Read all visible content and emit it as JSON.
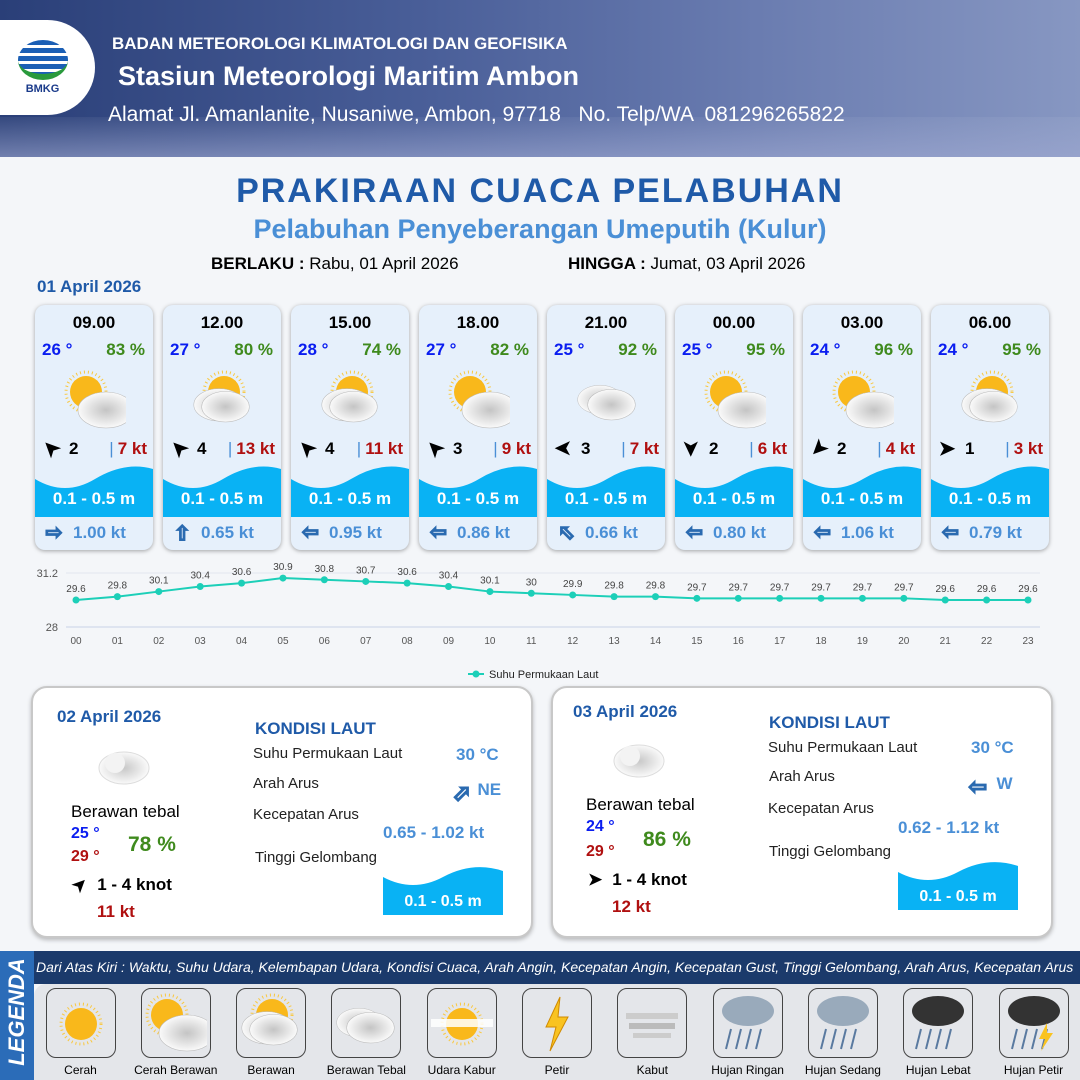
{
  "header": {
    "agency": "BADAN METEOROLOGI KLIMATOLOGI DAN GEOFISIKA",
    "station": "Stasiun Meteorologi Maritim Ambon",
    "address": "Alamat Jl. Amanlanite, Nusaniwe, Ambon, 97718   No. Telp/WA  081296265822",
    "logo_text": "BMKG"
  },
  "title": "PRAKIRAAN CUACA PELABUHAN",
  "subtitle": "Pelabuhan Penyeberangan Umeputih (Kulur)",
  "validity": {
    "from_label": "BERLAKU :",
    "from": "Rabu, 01 April 2026",
    "to_label": "HINGGA :",
    "to": "Jumat, 03 April 2026"
  },
  "day1": {
    "date": "01 April 2026",
    "cards": [
      {
        "time": "09.00",
        "temp": "26 °",
        "rh": "83 %",
        "weather": "cerah-berawan",
        "wind_dir": "NW",
        "wind": "2",
        "gust": "7 kt",
        "wave": "0.1 - 0.5 m",
        "current_dir": "E",
        "current": "1.00 kt"
      },
      {
        "time": "12.00",
        "temp": "27 °",
        "rh": "80 %",
        "weather": "berawan",
        "wind_dir": "NW",
        "wind": "4",
        "gust": "13 kt",
        "wave": "0.1 - 0.5 m",
        "current_dir": "N",
        "current": "0.65 kt"
      },
      {
        "time": "15.00",
        "temp": "28 °",
        "rh": "74 %",
        "weather": "berawan",
        "wind_dir": "NW",
        "wind": "4",
        "gust": "11 kt",
        "wave": "0.1 - 0.5 m",
        "current_dir": "W",
        "current": "0.95 kt"
      },
      {
        "time": "18.00",
        "temp": "27 °",
        "rh": "82 %",
        "weather": "cerah-berawan",
        "wind_dir": "NW",
        "wind": "3",
        "gust": "9 kt",
        "wave": "0.1 - 0.5 m",
        "current_dir": "W",
        "current": "0.86 kt"
      },
      {
        "time": "21.00",
        "temp": "25 °",
        "rh": "92 %",
        "weather": "berawan-tebal",
        "wind_dir": "W",
        "wind": "3",
        "gust": "7 kt",
        "wave": "0.1 - 0.5 m",
        "current_dir": "NW",
        "current": "0.66 kt"
      },
      {
        "time": "00.00",
        "temp": "25 °",
        "rh": "95 %",
        "weather": "cerah-berawan",
        "wind_dir": "S",
        "wind": "2",
        "gust": "6 kt",
        "wave": "0.1 - 0.5 m",
        "current_dir": "W",
        "current": "0.80 kt"
      },
      {
        "time": "03.00",
        "temp": "24 °",
        "rh": "96 %",
        "weather": "cerah-berawan",
        "wind_dir": "SW",
        "wind": "2",
        "gust": "4 kt",
        "wave": "0.1 - 0.5 m",
        "current_dir": "W",
        "current": "1.06 kt"
      },
      {
        "time": "06.00",
        "temp": "24 °",
        "rh": "95 %",
        "weather": "berawan",
        "wind_dir": "E",
        "wind": "1",
        "gust": "3 kt",
        "wave": "0.1 - 0.5 m",
        "current_dir": "W",
        "current": "0.79 kt"
      }
    ]
  },
  "chart_data": {
    "type": "line",
    "categories": [
      "00",
      "01",
      "02",
      "03",
      "04",
      "05",
      "06",
      "07",
      "08",
      "09",
      "10",
      "11",
      "12",
      "13",
      "14",
      "15",
      "16",
      "17",
      "18",
      "19",
      "20",
      "21",
      "22",
      "23"
    ],
    "series": [
      {
        "name": "Suhu Permukaan Laut",
        "values": [
          29.6,
          29.8,
          30.1,
          30.4,
          30.6,
          30.9,
          30.8,
          30.7,
          30.6,
          30.4,
          30.1,
          30.0,
          29.9,
          29.8,
          29.8,
          29.7,
          29.7,
          29.7,
          29.7,
          29.7,
          29.7,
          29.6,
          29.6,
          29.6
        ]
      }
    ],
    "ylim": [
      28,
      31.2
    ],
    "yticks": [
      "28",
      "31.2"
    ],
    "legend": "bottom-center",
    "color": "#1ccfb8"
  },
  "day2": {
    "date": "02 April 2026",
    "weather_label": "Berawan tebal",
    "tmin": "25 °",
    "tmax": "29 °",
    "rh": "78 %",
    "wind_dir": "NW",
    "wind": "1  - 4 knot",
    "gust": "11 kt",
    "sea_title": "KONDISI LAUT",
    "sst_label": "Suhu Permukaan Laut",
    "sst": "30 °C",
    "cur_dir_label": "Arah Arus",
    "cur_dir": "NE",
    "cur_spd_label": "Kecepatan Arus",
    "cur_spd": "0.65 - 1.02 kt",
    "wave_label": "Tinggi Gelombang",
    "wave": "0.1 - 0.5 m"
  },
  "day3": {
    "date": "03 April 2026",
    "weather_label": "Berawan tebal",
    "tmin": "24 °",
    "tmax": "29 °",
    "rh": "86 %",
    "wind_dir": "E",
    "wind": "1  - 4 knot",
    "gust": "12 kt",
    "sea_title": "KONDISI LAUT",
    "sst_label": "Suhu Permukaan Laut",
    "sst": "30 °C",
    "cur_dir_label": "Arah Arus",
    "cur_dir": "W",
    "cur_spd_label": "Kecepatan Arus",
    "cur_spd": "0.62 - 1.12 kt",
    "wave_label": "Tinggi Gelombang",
    "wave": "0.1 - 0.5 m"
  },
  "legend": {
    "title": "LEGENDA",
    "description": "Dari Atas Kiri : Waktu, Suhu Udara, Kelembapan Udara, Kondisi Cuaca, Arah Angin, Kecepatan Angin, Kecepatan Gust, Tinggi Gelombang, Arah Arus, Kecepatan Arus",
    "items": [
      {
        "label": "Cerah",
        "icon": "cerah"
      },
      {
        "label": "Cerah Berawan",
        "icon": "cerah-berawan"
      },
      {
        "label": "Berawan",
        "icon": "berawan"
      },
      {
        "label": "Berawan Tebal",
        "icon": "berawan-tebal"
      },
      {
        "label": "Udara Kabur",
        "icon": "udara-kabur"
      },
      {
        "label": "Petir",
        "icon": "petir"
      },
      {
        "label": "Kabut",
        "icon": "kabut"
      },
      {
        "label": "Hujan Ringan",
        "icon": "hujan-ringan"
      },
      {
        "label": "Hujan Sedang",
        "icon": "hujan-sedang"
      },
      {
        "label": "Hujan Lebat",
        "icon": "hujan-lebat"
      },
      {
        "label": "Hujan Petir",
        "icon": "hujan-petir"
      }
    ]
  }
}
